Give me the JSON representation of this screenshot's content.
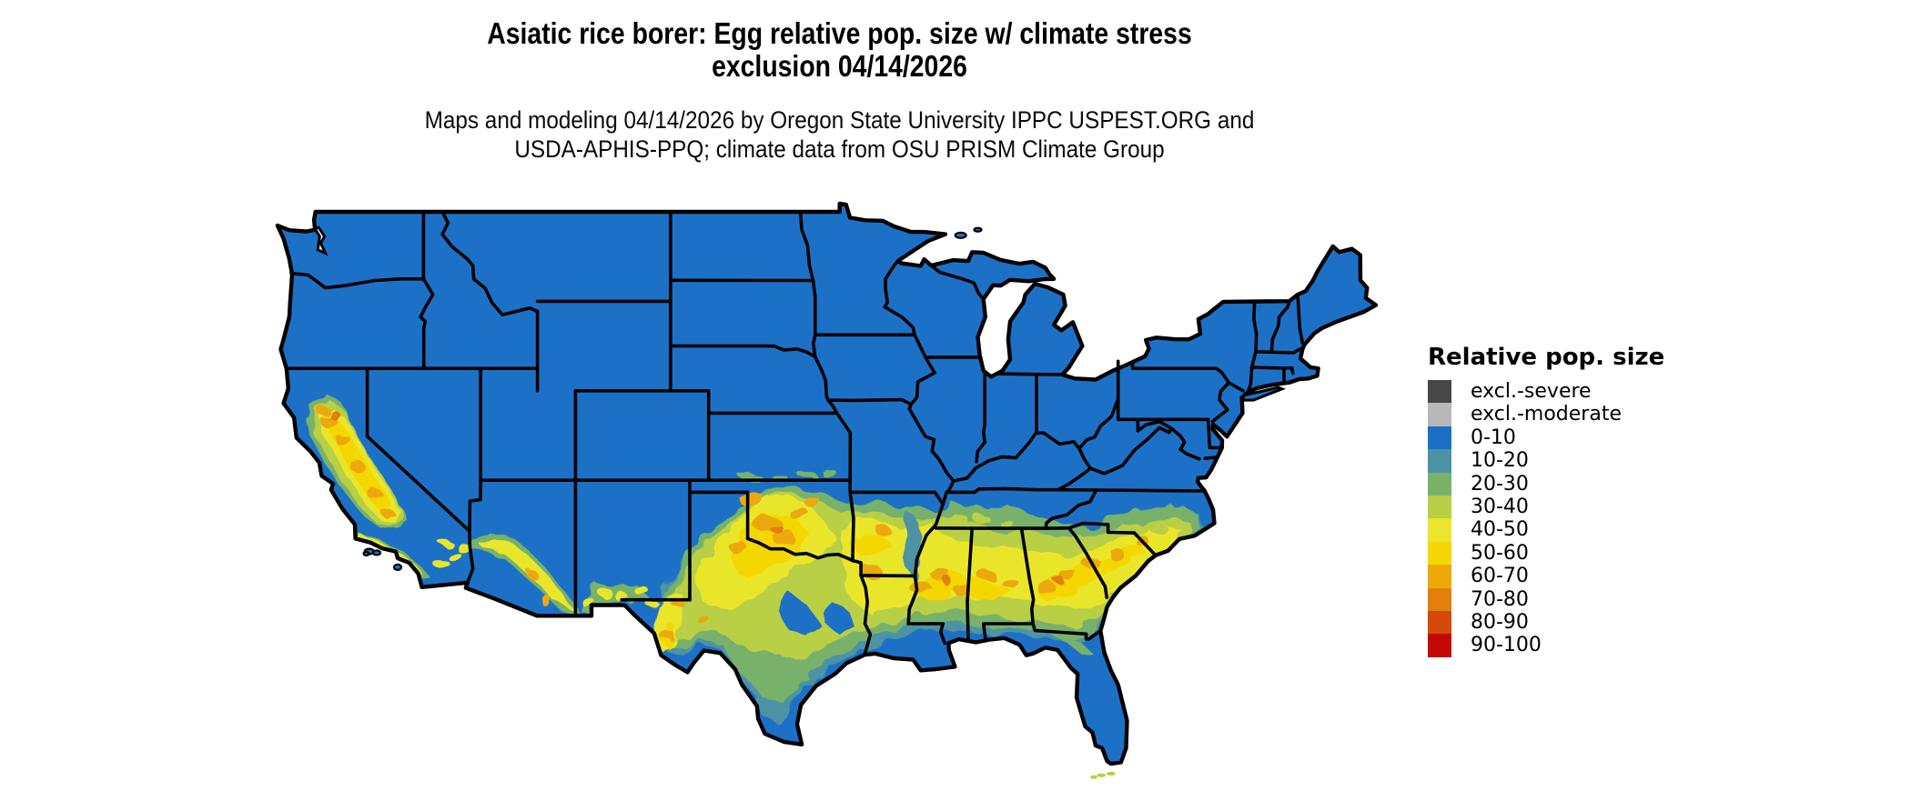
{
  "title": {
    "line1": "Asiatic rice borer: Egg relative pop. size w/ climate stress",
    "line2": "exclusion 04/14/2026"
  },
  "subtitle": {
    "line1": "Maps and modeling 04/14/2026 by Oregon State University IPPC USPEST.ORG and",
    "line2": "USDA-APHIS-PPQ; climate data from OSU PRISM Climate Group"
  },
  "legend": {
    "title": "Relative pop. size",
    "entries": [
      {
        "label": "excl.-severe",
        "color": "#474747"
      },
      {
        "label": "excl.-moderate",
        "color": "#b8b8b8"
      },
      {
        "label": "0-10",
        "color": "#1c71c7"
      },
      {
        "label": "10-20",
        "color": "#4b93a5"
      },
      {
        "label": "20-30",
        "color": "#78b16b"
      },
      {
        "label": "30-40",
        "color": "#b9cf45"
      },
      {
        "label": "40-50",
        "color": "#e9e62c"
      },
      {
        "label": "50-60",
        "color": "#f5d703"
      },
      {
        "label": "60-70",
        "color": "#eca909"
      },
      {
        "label": "70-80",
        "color": "#e2800b"
      },
      {
        "label": "80-90",
        "color": "#d54a08"
      },
      {
        "label": "90-100",
        "color": "#c40806"
      }
    ]
  },
  "map": {
    "base_category": "0-10",
    "border_color": "#000000",
    "water_color": "#ffffff"
  }
}
